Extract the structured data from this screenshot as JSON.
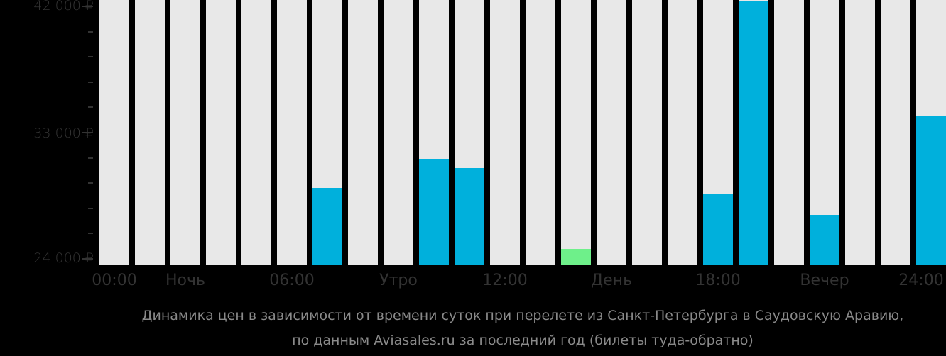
{
  "chart_data": {
    "type": "bar",
    "title": "Динамика цен в зависимости от времени суток при перелете из Санкт-Петербурга в Саудовскую Аравию, по данным Aviasales.ru за последний год (билеты туда-обратно)",
    "xlabel": "",
    "ylabel": "",
    "ylim": [
      24000,
      42000
    ],
    "grid": false,
    "legend": null,
    "categories": [
      "00",
      "01",
      "02",
      "03",
      "04",
      "05",
      "06",
      "07",
      "08",
      "09",
      "10",
      "11",
      "12",
      "13",
      "14",
      "15",
      "16",
      "17",
      "18",
      "19",
      "20",
      "21",
      "22",
      "23"
    ],
    "values": [
      null,
      null,
      null,
      null,
      null,
      null,
      29060,
      null,
      null,
      31130,
      30470,
      null,
      null,
      24710,
      null,
      null,
      null,
      28650,
      42350,
      null,
      27130,
      null,
      null,
      34210
    ],
    "bar_colors": {
      "normal": "#00b0dc",
      "cheapest": "#6ef08a",
      "no_data": "#e8e8e8"
    },
    "cheapest_index": 13,
    "y_ticks": [
      {
        "value": 42000,
        "label": "42 000 ₽"
      },
      {
        "value": 33000,
        "label": "33 000 ₽"
      },
      {
        "value": 24000,
        "label": "24 000 ₽"
      }
    ],
    "x_tick_labels": [
      {
        "pos": 0,
        "label": "00:00"
      },
      {
        "pos": 3,
        "label": "Ночь"
      },
      {
        "pos": 6,
        "label": "06:00"
      },
      {
        "pos": 9,
        "label": "Утро"
      },
      {
        "pos": 12,
        "label": "12:00"
      },
      {
        "pos": 15,
        "label": "День"
      },
      {
        "pos": 18,
        "label": "18:00"
      },
      {
        "pos": 21,
        "label": "Вечер"
      },
      {
        "pos": 24,
        "label": "24:00"
      }
    ]
  },
  "caption": {
    "line1": "Динамика цен в зависимости от времени суток при перелете из Санкт-Петербурга в Саудовскую Аравию,",
    "line2": "по данным Aviasales.ru за последний год (билеты туда-обратно)"
  },
  "axis": {
    "y_labels": [
      "42 000 ₽",
      "33 000 ₽",
      "24 000 ₽"
    ],
    "x_labels": [
      "00:00",
      "Ночь",
      "06:00",
      "Утро",
      "12:00",
      "День",
      "18:00",
      "Вечер",
      "24:00"
    ]
  }
}
